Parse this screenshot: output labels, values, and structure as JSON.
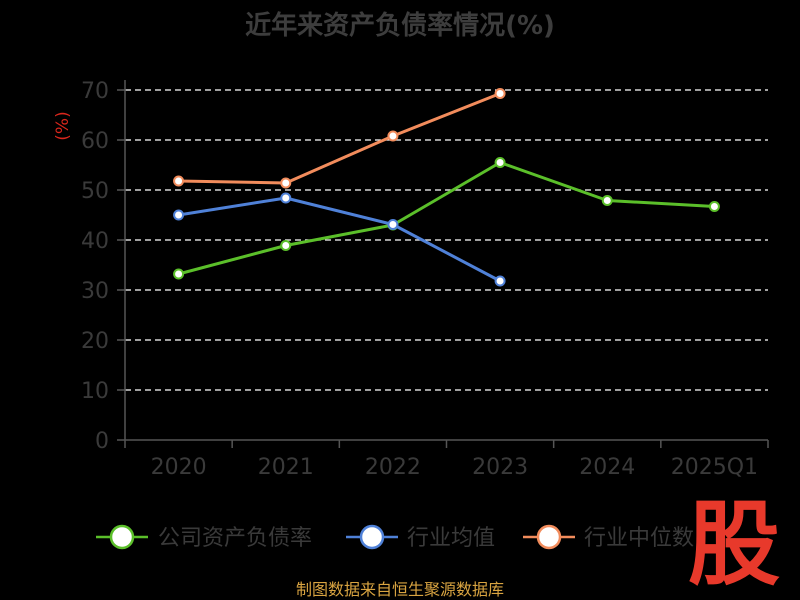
{
  "chart_data": {
    "type": "line",
    "title": "近年来资产负债率情况(%)",
    "ylabel": "(%)",
    "xlabel": "",
    "categories": [
      "2020",
      "2021",
      "2022",
      "2023",
      "2024",
      "2025Q1"
    ],
    "ylim": [
      0,
      70
    ],
    "yticks": [
      0,
      10,
      20,
      30,
      40,
      50,
      60,
      70
    ],
    "grid": true,
    "legend_position": "bottom",
    "series": [
      {
        "name": "公司资产负债率",
        "color": "#5bbf2a",
        "values": [
          33.2,
          38.9,
          43.0,
          55.5,
          47.9,
          46.7
        ]
      },
      {
        "name": "行业均值",
        "color": "#4f81d8",
        "values": [
          45.0,
          48.4,
          43.1,
          31.8,
          null,
          null
        ]
      },
      {
        "name": "行业中位数",
        "color": "#f28c5c",
        "values": [
          51.8,
          51.4,
          60.8,
          69.3,
          null,
          null
        ]
      }
    ]
  },
  "footer": {
    "source": "制图数据来自恒生聚源数据库"
  },
  "watermark": {
    "text": "股"
  }
}
